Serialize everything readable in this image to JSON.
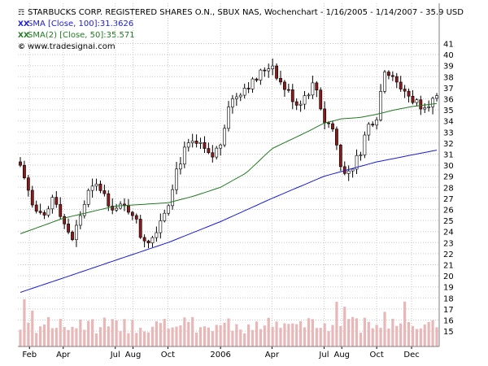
{
  "legend": {
    "title": "STARBUCKS CORP. REGISTERED SHARES O.N., SBUX NAS, Wochenchart - 1/16/2005 - 1/14/2007 - 35.9 USD",
    "sma100": "SMA [Close, 100]:31.3626",
    "sma50": "SMA(2) [Close, 50]:35.571",
    "site": "www.tradesignal.com"
  },
  "colors": {
    "up_candle": "#ffffff",
    "down_candle": "#8b1a1a",
    "sma100": "#1a1ad8",
    "sma50": "#1f7a1f",
    "volume": "#e8b8b8",
    "grid": "#c8c8c8"
  },
  "chart_data": {
    "type": "candlestick",
    "y_range": [
      14,
      42
    ],
    "y_ticks": [
      15,
      16,
      17,
      18,
      19,
      20,
      21,
      22,
      23,
      24,
      25,
      26,
      27,
      28,
      29,
      30,
      31,
      32,
      33,
      34,
      35,
      36,
      37,
      38,
      39,
      40,
      41
    ],
    "x_ticks": [
      {
        "label": "Feb",
        "date": "2005-02-01"
      },
      {
        "label": "Apr",
        "date": "2005-04-01"
      },
      {
        "label": "Jul",
        "date": "2005-07-01"
      },
      {
        "label": "Aug",
        "date": "2005-08-01"
      },
      {
        "label": "Oct",
        "date": "2005-10-01"
      },
      {
        "label": "2006",
        "date": "2006-01-01"
      },
      {
        "label": "Apr",
        "date": "2006-04-01"
      },
      {
        "label": "Jul",
        "date": "2006-07-01"
      },
      {
        "label": "Aug",
        "date": "2006-08-01"
      },
      {
        "label": "Oct",
        "date": "2006-10-01"
      },
      {
        "label": "Dec",
        "date": "2006-12-01"
      }
    ],
    "start_date": "2005-01-16",
    "end_date": "2007-01-14",
    "close_anchors": [
      [
        "2005-01-16",
        30.0
      ],
      [
        "2005-02-01",
        27.5
      ],
      [
        "2005-02-15",
        25.5
      ],
      [
        "2005-03-01",
        25.0
      ],
      [
        "2005-03-15",
        27.5
      ],
      [
        "2005-04-01",
        25.0
      ],
      [
        "2005-04-15",
        23.0
      ],
      [
        "2005-05-01",
        25.5
      ],
      [
        "2005-05-15",
        27.5
      ],
      [
        "2005-06-01",
        28.2
      ],
      [
        "2005-06-15",
        27.0
      ],
      [
        "2005-07-01",
        26.0
      ],
      [
        "2005-07-15",
        26.2
      ],
      [
        "2005-08-01",
        25.8
      ],
      [
        "2005-08-15",
        23.5
      ],
      [
        "2005-09-01",
        23.2
      ],
      [
        "2005-09-15",
        24.8
      ],
      [
        "2005-10-01",
        26.5
      ],
      [
        "2005-10-15",
        29.5
      ],
      [
        "2005-11-01",
        31.5
      ],
      [
        "2005-11-15",
        32.0
      ],
      [
        "2005-12-01",
        31.5
      ],
      [
        "2005-12-15",
        30.5
      ],
      [
        "2006-01-01",
        32.0
      ],
      [
        "2006-01-15",
        35.5
      ],
      [
        "2006-02-01",
        36.5
      ],
      [
        "2006-02-15",
        37.2
      ],
      [
        "2006-03-01",
        37.5
      ],
      [
        "2006-03-15",
        38.5
      ],
      [
        "2006-04-01",
        39.2
      ],
      [
        "2006-04-15",
        37.5
      ],
      [
        "2006-05-01",
        36.5
      ],
      [
        "2006-05-15",
        35.5
      ],
      [
        "2006-06-01",
        36.5
      ],
      [
        "2006-06-15",
        37.5
      ],
      [
        "2006-07-01",
        34.0
      ],
      [
        "2006-07-15",
        33.5
      ],
      [
        "2006-08-01",
        29.8
      ],
      [
        "2006-08-15",
        29.5
      ],
      [
        "2006-09-01",
        31.0
      ],
      [
        "2006-09-15",
        33.5
      ],
      [
        "2006-10-01",
        34.5
      ],
      [
        "2006-10-15",
        38.8
      ],
      [
        "2006-11-01",
        37.5
      ],
      [
        "2006-11-15",
        37.0
      ],
      [
        "2006-12-01",
        36.0
      ],
      [
        "2006-12-15",
        35.5
      ],
      [
        "2007-01-14",
        35.9
      ]
    ],
    "sma50": [
      [
        "2005-01-16",
        23.8
      ],
      [
        "2005-04-01",
        25.2
      ],
      [
        "2005-07-01",
        26.3
      ],
      [
        "2005-10-01",
        26.6
      ],
      [
        "2005-11-15",
        27.2
      ],
      [
        "2006-01-01",
        28.0
      ],
      [
        "2006-02-15",
        29.3
      ],
      [
        "2006-04-01",
        31.5
      ],
      [
        "2006-06-01",
        33.0
      ],
      [
        "2006-07-01",
        33.8
      ],
      [
        "2006-08-01",
        34.2
      ],
      [
        "2006-09-01",
        34.3
      ],
      [
        "2006-10-01",
        34.6
      ],
      [
        "2006-11-01",
        35.0
      ],
      [
        "2006-12-01",
        35.3
      ],
      [
        "2007-01-14",
        35.571
      ]
    ],
    "sma100": [
      [
        "2005-01-16",
        18.5
      ],
      [
        "2005-04-01",
        19.8
      ],
      [
        "2005-07-01",
        21.4
      ],
      [
        "2005-10-01",
        23.0
      ],
      [
        "2006-01-01",
        24.9
      ],
      [
        "2006-04-01",
        27.0
      ],
      [
        "2006-07-01",
        29.0
      ],
      [
        "2006-10-01",
        30.3
      ],
      [
        "2007-01-14",
        31.3626
      ]
    ],
    "volume_spike_dates": [
      "2005-01-23",
      "2005-02-06",
      "2006-07-23",
      "2006-08-06",
      "2006-10-15",
      "2006-11-19"
    ]
  }
}
